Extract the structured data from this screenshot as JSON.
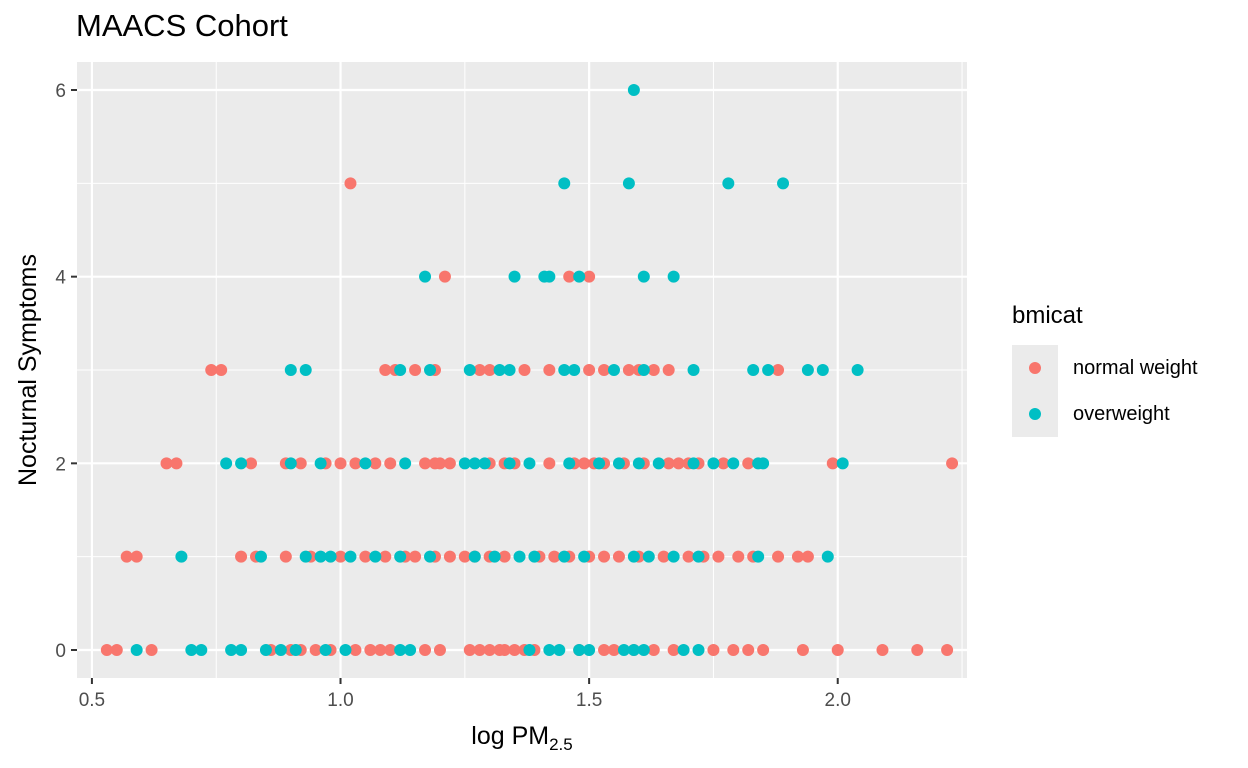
{
  "chart_data": {
    "type": "scatter",
    "title": "MAACS Cohort",
    "xlabel_main": "log PM",
    "xlabel_sub": "2.5",
    "ylabel": "Nocturnal Symptoms",
    "xlim": [
      0.47,
      2.26
    ],
    "ylim": [
      -0.3,
      6.3
    ],
    "x_ticks": [
      0.5,
      1.0,
      1.5,
      2.0
    ],
    "x_tick_labels": [
      "0.5",
      "1.0",
      "1.5",
      "2.0"
    ],
    "y_ticks": [
      0,
      2,
      4,
      6
    ],
    "y_tick_labels": [
      "0",
      "2",
      "4",
      "6"
    ],
    "grid": true,
    "legend_title": "bmicat",
    "legend_position": "right",
    "series": [
      {
        "name": "normal weight",
        "color": "#F8766D",
        "points": [
          [
            0.53,
            0
          ],
          [
            0.55,
            0
          ],
          [
            0.62,
            0
          ],
          [
            0.86,
            0
          ],
          [
            0.9,
            0
          ],
          [
            0.92,
            0
          ],
          [
            0.95,
            0
          ],
          [
            0.98,
            0
          ],
          [
            1.03,
            0
          ],
          [
            1.06,
            0
          ],
          [
            1.08,
            0
          ],
          [
            1.1,
            0
          ],
          [
            1.17,
            0
          ],
          [
            1.2,
            0
          ],
          [
            1.26,
            0
          ],
          [
            1.28,
            0
          ],
          [
            1.3,
            0
          ],
          [
            1.32,
            0
          ],
          [
            1.33,
            0
          ],
          [
            1.35,
            0
          ],
          [
            1.37,
            0
          ],
          [
            1.39,
            0
          ],
          [
            1.48,
            0
          ],
          [
            1.53,
            0
          ],
          [
            1.55,
            0
          ],
          [
            1.59,
            0
          ],
          [
            1.63,
            0
          ],
          [
            1.67,
            0
          ],
          [
            1.75,
            0
          ],
          [
            1.79,
            0
          ],
          [
            1.82,
            0
          ],
          [
            1.85,
            0
          ],
          [
            1.93,
            0
          ],
          [
            2.0,
            0
          ],
          [
            2.09,
            0
          ],
          [
            2.16,
            0
          ],
          [
            2.22,
            0
          ],
          [
            0.57,
            1
          ],
          [
            0.59,
            1
          ],
          [
            0.8,
            1
          ],
          [
            0.83,
            1
          ],
          [
            0.89,
            1
          ],
          [
            0.94,
            1
          ],
          [
            1.0,
            1
          ],
          [
            1.05,
            1
          ],
          [
            1.09,
            1
          ],
          [
            1.13,
            1
          ],
          [
            1.15,
            1
          ],
          [
            1.19,
            1
          ],
          [
            1.22,
            1
          ],
          [
            1.25,
            1
          ],
          [
            1.27,
            1
          ],
          [
            1.3,
            1
          ],
          [
            1.33,
            1
          ],
          [
            1.4,
            1
          ],
          [
            1.43,
            1
          ],
          [
            1.46,
            1
          ],
          [
            1.5,
            1
          ],
          [
            1.53,
            1
          ],
          [
            1.56,
            1
          ],
          [
            1.6,
            1
          ],
          [
            1.65,
            1
          ],
          [
            1.7,
            1
          ],
          [
            1.73,
            1
          ],
          [
            1.76,
            1
          ],
          [
            1.8,
            1
          ],
          [
            1.83,
            1
          ],
          [
            1.88,
            1
          ],
          [
            1.92,
            1
          ],
          [
            1.94,
            1
          ],
          [
            0.65,
            2
          ],
          [
            0.67,
            2
          ],
          [
            0.82,
            2
          ],
          [
            0.89,
            2
          ],
          [
            0.92,
            2
          ],
          [
            0.97,
            2
          ],
          [
            1.0,
            2
          ],
          [
            1.03,
            2
          ],
          [
            1.07,
            2
          ],
          [
            1.1,
            2
          ],
          [
            1.17,
            2
          ],
          [
            1.19,
            2
          ],
          [
            1.2,
            2
          ],
          [
            1.22,
            2
          ],
          [
            1.3,
            2
          ],
          [
            1.33,
            2
          ],
          [
            1.35,
            2
          ],
          [
            1.42,
            2
          ],
          [
            1.47,
            2
          ],
          [
            1.49,
            2
          ],
          [
            1.51,
            2
          ],
          [
            1.53,
            2
          ],
          [
            1.57,
            2
          ],
          [
            1.61,
            2
          ],
          [
            1.66,
            2
          ],
          [
            1.68,
            2
          ],
          [
            1.7,
            2
          ],
          [
            1.72,
            2
          ],
          [
            1.77,
            2
          ],
          [
            1.82,
            2
          ],
          [
            1.99,
            2
          ],
          [
            2.23,
            2
          ],
          [
            0.74,
            3
          ],
          [
            0.76,
            3
          ],
          [
            1.09,
            3
          ],
          [
            1.11,
            3
          ],
          [
            1.15,
            3
          ],
          [
            1.19,
            3
          ],
          [
            1.28,
            3
          ],
          [
            1.3,
            3
          ],
          [
            1.37,
            3
          ],
          [
            1.42,
            3
          ],
          [
            1.5,
            3
          ],
          [
            1.53,
            3
          ],
          [
            1.58,
            3
          ],
          [
            1.6,
            3
          ],
          [
            1.63,
            3
          ],
          [
            1.66,
            3
          ],
          [
            1.88,
            3
          ],
          [
            1.21,
            4
          ],
          [
            1.46,
            4
          ],
          [
            1.5,
            4
          ],
          [
            1.02,
            5
          ]
        ]
      },
      {
        "name": "overweight",
        "color": "#00BFC4",
        "points": [
          [
            0.59,
            0
          ],
          [
            0.7,
            0
          ],
          [
            0.72,
            0
          ],
          [
            0.78,
            0
          ],
          [
            0.8,
            0
          ],
          [
            0.85,
            0
          ],
          [
            0.88,
            0
          ],
          [
            0.91,
            0
          ],
          [
            0.97,
            0
          ],
          [
            1.01,
            0
          ],
          [
            1.12,
            0
          ],
          [
            1.14,
            0
          ],
          [
            1.38,
            0
          ],
          [
            1.42,
            0
          ],
          [
            1.44,
            0
          ],
          [
            1.48,
            0
          ],
          [
            1.5,
            0
          ],
          [
            1.57,
            0
          ],
          [
            1.59,
            0
          ],
          [
            1.61,
            0
          ],
          [
            1.69,
            0
          ],
          [
            1.72,
            0
          ],
          [
            0.68,
            1
          ],
          [
            0.84,
            1
          ],
          [
            0.93,
            1
          ],
          [
            0.96,
            1
          ],
          [
            0.98,
            1
          ],
          [
            1.02,
            1
          ],
          [
            1.07,
            1
          ],
          [
            1.12,
            1
          ],
          [
            1.18,
            1
          ],
          [
            1.27,
            1
          ],
          [
            1.31,
            1
          ],
          [
            1.36,
            1
          ],
          [
            1.39,
            1
          ],
          [
            1.45,
            1
          ],
          [
            1.49,
            1
          ],
          [
            1.59,
            1
          ],
          [
            1.62,
            1
          ],
          [
            1.67,
            1
          ],
          [
            1.72,
            1
          ],
          [
            1.84,
            1
          ],
          [
            1.98,
            1
          ],
          [
            0.77,
            2
          ],
          [
            0.8,
            2
          ],
          [
            0.9,
            2
          ],
          [
            0.96,
            2
          ],
          [
            1.05,
            2
          ],
          [
            1.13,
            2
          ],
          [
            1.25,
            2
          ],
          [
            1.27,
            2
          ],
          [
            1.29,
            2
          ],
          [
            1.34,
            2
          ],
          [
            1.38,
            2
          ],
          [
            1.46,
            2
          ],
          [
            1.52,
            2
          ],
          [
            1.56,
            2
          ],
          [
            1.6,
            2
          ],
          [
            1.64,
            2
          ],
          [
            1.71,
            2
          ],
          [
            1.75,
            2
          ],
          [
            1.79,
            2
          ],
          [
            1.84,
            2
          ],
          [
            1.85,
            2
          ],
          [
            2.01,
            2
          ],
          [
            0.9,
            3
          ],
          [
            0.93,
            3
          ],
          [
            1.12,
            3
          ],
          [
            1.18,
            3
          ],
          [
            1.26,
            3
          ],
          [
            1.32,
            3
          ],
          [
            1.34,
            3
          ],
          [
            1.45,
            3
          ],
          [
            1.47,
            3
          ],
          [
            1.55,
            3
          ],
          [
            1.61,
            3
          ],
          [
            1.71,
            3
          ],
          [
            1.83,
            3
          ],
          [
            1.86,
            3
          ],
          [
            1.94,
            3
          ],
          [
            1.97,
            3
          ],
          [
            2.04,
            3
          ],
          [
            1.17,
            4
          ],
          [
            1.35,
            4
          ],
          [
            1.41,
            4
          ],
          [
            1.42,
            4
          ],
          [
            1.48,
            4
          ],
          [
            1.61,
            4
          ],
          [
            1.67,
            4
          ],
          [
            1.45,
            5
          ],
          [
            1.58,
            5
          ],
          [
            1.78,
            5
          ],
          [
            1.89,
            5
          ],
          [
            1.59,
            6
          ]
        ]
      }
    ]
  }
}
